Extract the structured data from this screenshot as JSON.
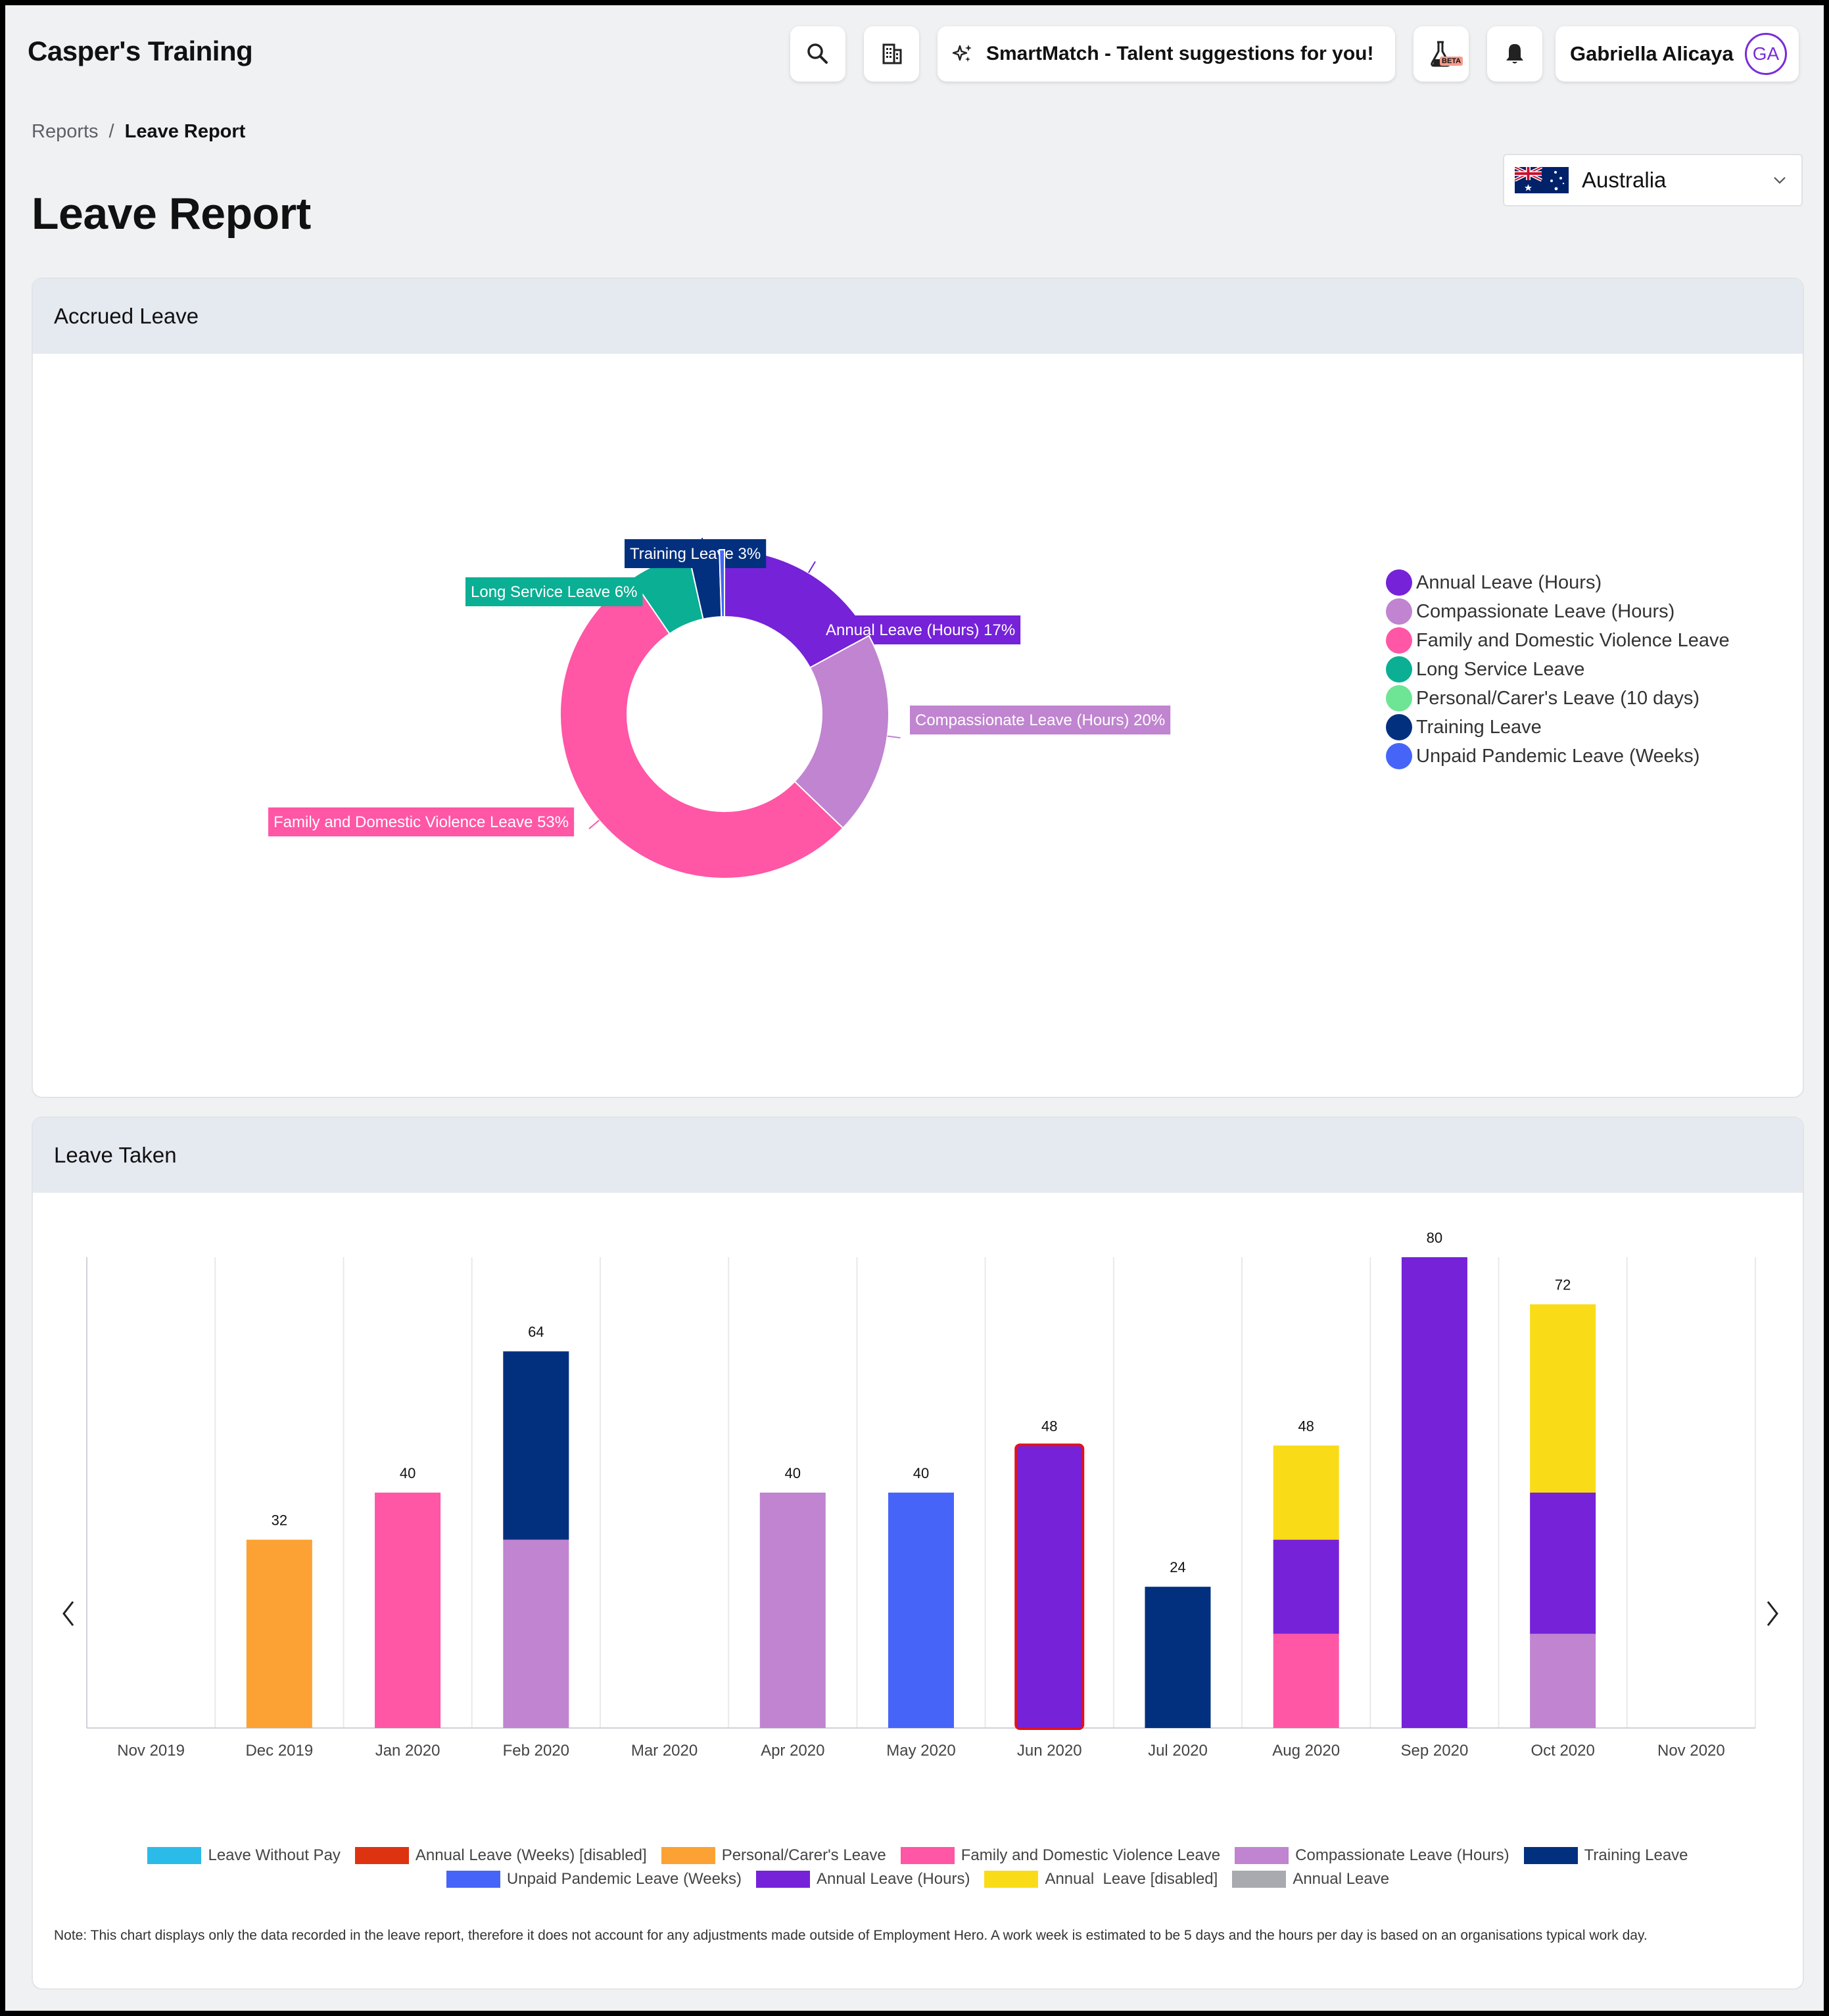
{
  "app": {
    "brand": "Casper's Training",
    "smartmatch_label": "SmartMatch - Talent suggestions for you!",
    "beta_badge": "BETA",
    "user_name": "Gabriella Alicaya",
    "user_initials": "GA"
  },
  "breadcrumb": {
    "root": "Reports",
    "separator": "/",
    "current": "Leave Report"
  },
  "page_title": "Leave Report",
  "country_select": {
    "value": "Australia"
  },
  "colors": {
    "leave_without_pay": "#2bbbe9",
    "annual_weeks_disabled": "#dd3311",
    "personal_carers": "#fca235",
    "family_domestic_violence": "#ff56a6",
    "compassionate_hours": "#c084d0",
    "training": "#02307f",
    "unpaid_pandemic_weeks": "#4665f8",
    "annual_hours": "#7522d9",
    "annual_disabled": "#f9dc17",
    "annual": "#a8aab0",
    "long_service": "#0aaf94",
    "personal_carers_10_days": "#6de594"
  },
  "accrued": {
    "title": "Accrued Leave",
    "legend": [
      {
        "label": "Annual Leave (Hours)",
        "color": "#7522d9"
      },
      {
        "label": "Compassionate Leave (Hours)",
        "color": "#c084d0"
      },
      {
        "label": "Family and Domestic Violence Leave",
        "color": "#ff56a6"
      },
      {
        "label": "Long Service Leave",
        "color": "#0aaf94"
      },
      {
        "label": "Personal/Carer's Leave (10 days)",
        "color": "#6de594"
      },
      {
        "label": "Training Leave",
        "color": "#02307f"
      },
      {
        "label": "Unpaid Pandemic Leave (Weeks)",
        "color": "#4665f8"
      }
    ]
  },
  "chart_data": [
    {
      "type": "pie",
      "title": "Accrued Leave",
      "donut": true,
      "legend_position": "right",
      "slices": [
        {
          "name": "Annual Leave (Hours)",
          "percent": 17,
          "label": "Annual Leave (Hours) 17%",
          "color": "#7522d9"
        },
        {
          "name": "Compassionate Leave (Hours)",
          "percent": 20,
          "label": "Compassionate Leave (Hours) 20%",
          "color": "#c084d0"
        },
        {
          "name": "Family and Domestic Violence Leave",
          "percent": 53,
          "label": "Family and Domestic Violence Leave 53%",
          "color": "#ff56a6"
        },
        {
          "name": "Long Service Leave",
          "percent": 6,
          "label": "Long Service Leave 6%",
          "color": "#0aaf94"
        },
        {
          "name": "Training Leave",
          "percent": 3,
          "label": "Training Leave 3%",
          "color": "#02307f"
        },
        {
          "name": "Unpaid Pandemic Leave (Weeks)",
          "percent": 0.5,
          "label": "",
          "color": "#4665f8"
        }
      ]
    },
    {
      "type": "bar",
      "stacked": true,
      "title": "Leave Taken",
      "categories": [
        "Nov 2019",
        "Dec 2019",
        "Jan 2020",
        "Feb 2020",
        "Mar 2020",
        "Apr 2020",
        "May 2020",
        "Jun 2020",
        "Jul 2020",
        "Aug 2020",
        "Sep 2020",
        "Oct 2020",
        "Nov 2020"
      ],
      "ylim": [
        0,
        80
      ],
      "grid": true,
      "legend_position": "bottom",
      "highlighted_category": "Jun 2020",
      "totals": [
        null,
        32,
        40,
        64,
        null,
        40,
        40,
        48,
        24,
        48,
        80,
        72,
        null
      ],
      "series": [
        {
          "name": "Leave Without Pay",
          "color": "#2bbbe9",
          "values": [
            0,
            0,
            0,
            0,
            0,
            0,
            0,
            0,
            0,
            0,
            0,
            0,
            0
          ]
        },
        {
          "name": "Annual Leave (Weeks) [disabled]",
          "color": "#dd3311",
          "values": [
            0,
            0,
            0,
            0,
            0,
            0,
            0,
            0,
            0,
            0,
            0,
            0,
            0
          ]
        },
        {
          "name": "Personal/Carer's Leave",
          "color": "#fca235",
          "values": [
            0,
            32,
            0,
            0,
            0,
            0,
            0,
            0,
            0,
            0,
            0,
            0,
            0
          ]
        },
        {
          "name": "Family and Domestic Violence Leave",
          "color": "#ff56a6",
          "values": [
            0,
            0,
            40,
            0,
            0,
            0,
            0,
            0,
            0,
            16,
            0,
            0,
            0
          ]
        },
        {
          "name": "Compassionate Leave (Hours)",
          "color": "#c084d0",
          "values": [
            0,
            0,
            0,
            32,
            0,
            40,
            0,
            0,
            0,
            0,
            0,
            16,
            0
          ]
        },
        {
          "name": "Training Leave",
          "color": "#02307f",
          "values": [
            0,
            0,
            0,
            32,
            0,
            0,
            0,
            0,
            24,
            0,
            0,
            0,
            0
          ]
        },
        {
          "name": "Unpaid Pandemic Leave (Weeks)",
          "color": "#4665f8",
          "values": [
            0,
            0,
            0,
            0,
            0,
            0,
            40,
            0,
            0,
            0,
            0,
            0,
            0
          ]
        },
        {
          "name": "Annual Leave (Hours)",
          "color": "#7522d9",
          "values": [
            0,
            0,
            0,
            0,
            0,
            0,
            0,
            48,
            0,
            16,
            80,
            24,
            0
          ]
        },
        {
          "name": "Annual  Leave [disabled]",
          "color": "#f9dc17",
          "values": [
            0,
            0,
            0,
            0,
            0,
            0,
            0,
            0,
            0,
            16,
            0,
            32,
            0
          ]
        },
        {
          "name": "Annual Leave",
          "color": "#a8aab0",
          "values": [
            0,
            0,
            0,
            0,
            0,
            0,
            0,
            0,
            0,
            0,
            0,
            0,
            0
          ]
        }
      ]
    }
  ],
  "taken": {
    "title": "Leave Taken",
    "legend_rows": [
      [
        {
          "label": "Leave Without Pay",
          "color": "#2bbbe9"
        },
        {
          "label": "Annual Leave (Weeks) [disabled]",
          "color": "#dd3311"
        },
        {
          "label": "Personal/Carer's Leave",
          "color": "#fca235"
        },
        {
          "label": "Family and Domestic Violence Leave",
          "color": "#ff56a6"
        },
        {
          "label": "Compassionate Leave (Hours)",
          "color": "#c084d0"
        },
        {
          "label": "Training Leave",
          "color": "#02307f"
        }
      ],
      [
        {
          "label": "Unpaid Pandemic Leave (Weeks)",
          "color": "#4665f8"
        },
        {
          "label": "Annual Leave (Hours)",
          "color": "#7522d9"
        },
        {
          "label": "Annual  Leave [disabled]",
          "color": "#f9dc17"
        },
        {
          "label": "Annual Leave",
          "color": "#a8aab0"
        }
      ]
    ],
    "note": "Note: This chart displays only the data recorded in the leave report, therefore it does not account for any adjustments made outside of Employment Hero. A work week is estimated to be 5 days and the hours per day is based on an organisations typical work day."
  },
  "icons": {
    "search": "search-icon",
    "org": "building-icon",
    "smartmatch": "sparkle-icon",
    "labs": "flask-icon",
    "notifications": "bell-icon",
    "country_flag": "australia-flag-icon",
    "dropdown": "chevron-down-icon",
    "prev": "chevron-left-icon",
    "next": "chevron-right-icon"
  }
}
